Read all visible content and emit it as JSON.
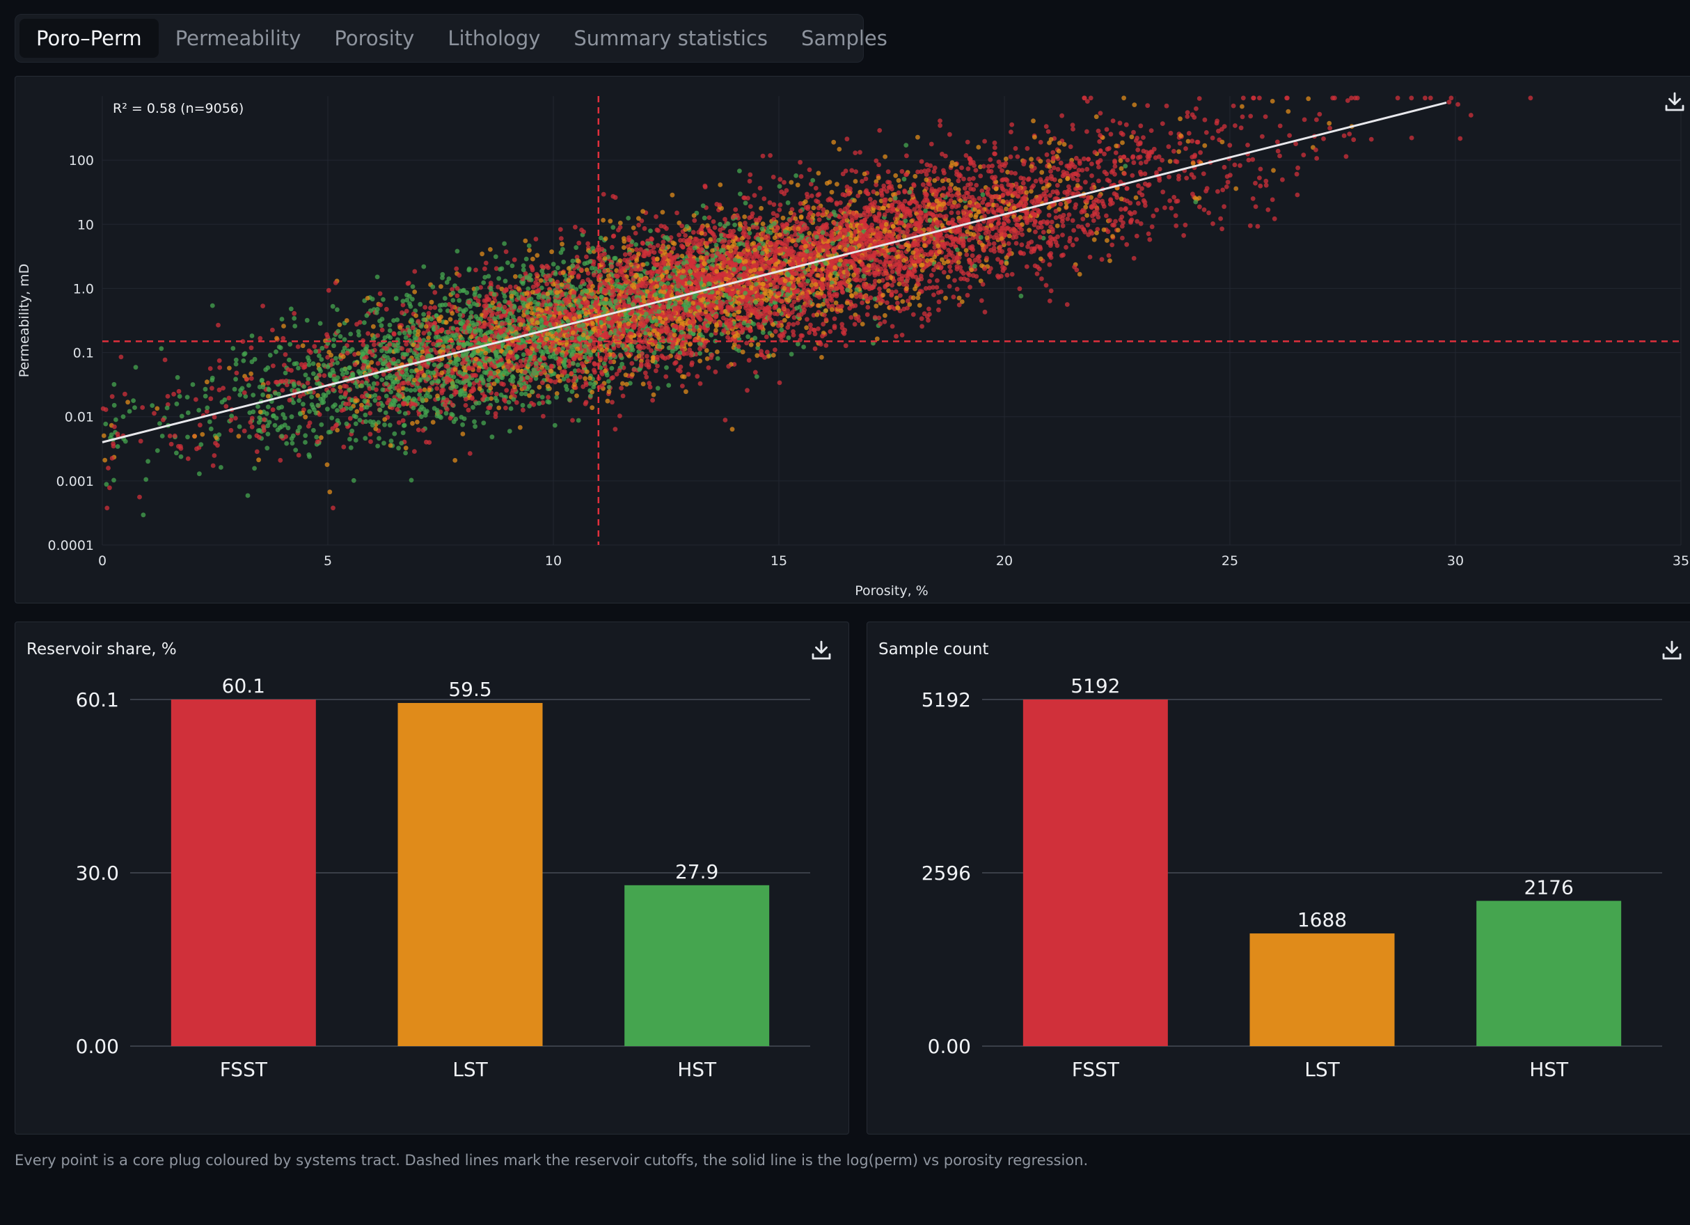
{
  "tabs": [
    {
      "label": "Poro–Perm",
      "active": true
    },
    {
      "label": "Permeability",
      "active": false
    },
    {
      "label": "Porosity",
      "active": false
    },
    {
      "label": "Lithology",
      "active": false
    },
    {
      "label": "Summary statistics",
      "active": false
    },
    {
      "label": "Samples",
      "active": false
    }
  ],
  "colors": {
    "FSST": "#d0303a",
    "LST": "#e08b1a",
    "HST": "#45a54f",
    "regression": "#e8e8ec",
    "cutoff": "#e0303c"
  },
  "footnote": "Every point is a core plug coloured by systems tract. Dashed lines mark the reservoir cutoffs, the solid line is the log(perm) vs porosity regression.",
  "icons": {
    "download": "download-icon"
  },
  "chart_data": [
    {
      "type": "scatter",
      "annotation": "R² = 0.58 (n=9056)",
      "xlabel": "Porosity, %",
      "ylabel": "Permeability, mD",
      "xlim": [
        0,
        35
      ],
      "ylim": [
        0.0001,
        1000
      ],
      "y_scale": "log",
      "x_ticks": [
        "0",
        "5",
        "10",
        "15",
        "20",
        "25",
        "30",
        "35"
      ],
      "x_tick_values": [
        0,
        5,
        10,
        15,
        20,
        25,
        30,
        35
      ],
      "y_ticks": [
        "0.0001",
        "0.001",
        "0.01",
        "0.1",
        "1.0",
        "10",
        "100"
      ],
      "y_tick_values": [
        0.0001,
        0.001,
        0.01,
        0.1,
        1,
        10,
        100
      ],
      "grid": true,
      "cutoffs": {
        "porosity": 11,
        "permeability": 0.15
      },
      "regression": {
        "x": [
          0,
          29.8
        ],
        "y": [
          0.004,
          790
        ]
      },
      "series_clusters": [
        {
          "name": "FSST",
          "count": 5192,
          "center_porosity": 14.5,
          "spread": 4.8
        },
        {
          "name": "LST",
          "count": 1688,
          "center_porosity": 13.5,
          "spread": 4.2
        },
        {
          "name": "HST",
          "count": 2176,
          "center_porosity": 9.5,
          "spread": 3.6
        }
      ]
    },
    {
      "type": "bar",
      "title": "Reservoir share, %",
      "categories": [
        "FSST",
        "LST",
        "HST"
      ],
      "values": [
        60.1,
        59.5,
        27.9
      ],
      "value_labels": [
        "60.1",
        "59.5",
        "27.9"
      ],
      "y_ticks": [
        "0.00",
        "30.0",
        "60.1"
      ],
      "y_tick_values": [
        0,
        30.05,
        60.1
      ],
      "ylim": [
        0,
        60.1
      ]
    },
    {
      "type": "bar",
      "title": "Sample count",
      "categories": [
        "FSST",
        "LST",
        "HST"
      ],
      "values": [
        5192,
        1688,
        2176
      ],
      "value_labels": [
        "5192",
        "1688",
        "2176"
      ],
      "y_ticks": [
        "0.00",
        "2596",
        "5192"
      ],
      "y_tick_values": [
        0,
        2596,
        5192
      ],
      "ylim": [
        0,
        5192
      ]
    }
  ]
}
